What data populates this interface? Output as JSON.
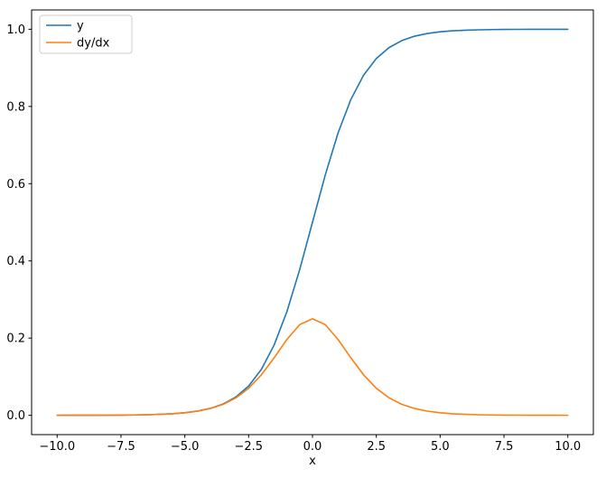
{
  "figure": {
    "background": "#ffffff"
  },
  "chart_data": {
    "type": "line",
    "xlabel": "x",
    "ylabel": "",
    "xlim": [
      -11,
      11
    ],
    "ylim": [
      -0.05,
      1.05
    ],
    "grid": false,
    "legend": {
      "position": "upper left",
      "frame": true
    },
    "xticks": [
      -10,
      -7.5,
      -5,
      -2.5,
      0,
      2.5,
      5,
      7.5,
      10
    ],
    "xtick_labels": [
      "−10.0",
      "−7.5",
      "−5.0",
      "−2.5",
      "0.0",
      "2.5",
      "5.0",
      "7.5",
      "10.0"
    ],
    "yticks": [
      0,
      0.2,
      0.4,
      0.6,
      0.8,
      1.0
    ],
    "ytick_labels": [
      "0.0",
      "0.2",
      "0.4",
      "0.6",
      "0.8",
      "1.0"
    ],
    "x": [
      -10,
      -9.5,
      -9,
      -8.5,
      -8,
      -7.5,
      -7,
      -6.5,
      -6,
      -5.5,
      -5,
      -4.5,
      -4,
      -3.5,
      -3,
      -2.5,
      -2,
      -1.5,
      -1,
      -0.5,
      0,
      0.5,
      1,
      1.5,
      2,
      2.5,
      3,
      3.5,
      4,
      4.5,
      5,
      5.5,
      6,
      6.5,
      7,
      7.5,
      8,
      8.5,
      9,
      9.5,
      10
    ],
    "series": [
      {
        "name": "y",
        "color": "#1f77b4",
        "values": [
          5e-05,
          7e-05,
          0.00012,
          0.0002,
          0.00034,
          0.00055,
          0.00091,
          0.0015,
          0.00247,
          0.00407,
          0.00669,
          0.01099,
          0.01799,
          0.02931,
          0.04743,
          0.07586,
          0.1192,
          0.18243,
          0.26894,
          0.37754,
          0.5,
          0.62246,
          0.73106,
          0.81757,
          0.8808,
          0.92414,
          0.95257,
          0.97069,
          0.98201,
          0.98901,
          0.99331,
          0.99593,
          0.99753,
          0.9985,
          0.99909,
          0.99945,
          0.99966,
          0.9998,
          0.99988,
          0.99993,
          0.99995
        ]
      },
      {
        "name": "dy/dx",
        "color": "#ff7f0e",
        "values": [
          5e-05,
          7e-05,
          0.00012,
          0.0002,
          0.00034,
          0.00055,
          0.00091,
          0.0015,
          0.00246,
          0.00405,
          0.00665,
          0.01087,
          0.01766,
          0.02845,
          0.04518,
          0.07011,
          0.10499,
          0.14914,
          0.19661,
          0.235,
          0.25,
          0.235,
          0.19661,
          0.14914,
          0.10499,
          0.07011,
          0.04518,
          0.02845,
          0.01766,
          0.01087,
          0.00665,
          0.00405,
          0.00246,
          0.0015,
          0.00091,
          0.00055,
          0.00034,
          0.0002,
          0.00012,
          7e-05,
          5e-05
        ]
      }
    ]
  }
}
